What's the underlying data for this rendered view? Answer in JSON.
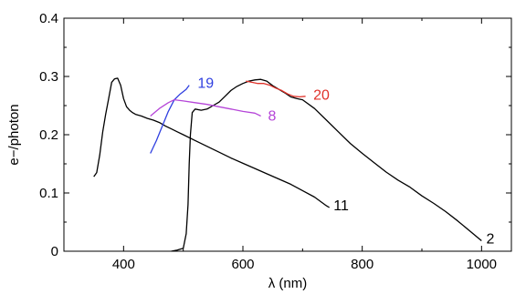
{
  "chart_data": {
    "type": "line",
    "title": "",
    "xlabel": "λ (nm)",
    "ylabel": "e−/photon",
    "xlim": [
      300,
      1050
    ],
    "ylim": [
      0,
      0.4
    ],
    "xticks": [
      400,
      600,
      800,
      1000
    ],
    "yticks": [
      0,
      0.1,
      0.2,
      0.3,
      0.4
    ],
    "ytick_labels": [
      "0",
      "0.1",
      "0.2",
      "0.3",
      "0.4"
    ],
    "grid": false,
    "legend": "none",
    "series": [
      {
        "name": "11",
        "color": "#000000",
        "label_pos": [
          752,
          0.078
        ],
        "x": [
          350,
          355,
          360,
          365,
          370,
          375,
          380,
          385,
          390,
          395,
          400,
          405,
          410,
          415,
          420,
          430,
          440,
          450,
          460,
          470,
          480,
          490,
          500,
          520,
          540,
          560,
          580,
          600,
          620,
          640,
          660,
          680,
          700,
          720,
          740,
          745
        ],
        "y": [
          0.128,
          0.135,
          0.165,
          0.205,
          0.235,
          0.262,
          0.29,
          0.296,
          0.297,
          0.285,
          0.262,
          0.248,
          0.242,
          0.238,
          0.235,
          0.232,
          0.228,
          0.225,
          0.221,
          0.215,
          0.21,
          0.205,
          0.2,
          0.19,
          0.18,
          0.17,
          0.16,
          0.151,
          0.142,
          0.133,
          0.124,
          0.115,
          0.104,
          0.093,
          0.078,
          0.075
        ]
      },
      {
        "name": "2",
        "color": "#000000",
        "label_pos": [
          1008,
          0.021
        ],
        "x": [
          480,
          490,
          500,
          505,
          508,
          510,
          512,
          515,
          520,
          530,
          540,
          550,
          560,
          570,
          580,
          590,
          600,
          610,
          620,
          630,
          640,
          650,
          660,
          670,
          680,
          690,
          700,
          720,
          740,
          760,
          780,
          800,
          820,
          840,
          860,
          880,
          900,
          920,
          940,
          960,
          980,
          1000
        ],
        "y": [
          0,
          0.002,
          0.005,
          0.03,
          0.08,
          0.15,
          0.2,
          0.238,
          0.244,
          0.242,
          0.244,
          0.25,
          0.256,
          0.266,
          0.276,
          0.283,
          0.288,
          0.292,
          0.294,
          0.295,
          0.292,
          0.284,
          0.278,
          0.272,
          0.265,
          0.262,
          0.26,
          0.245,
          0.225,
          0.205,
          0.185,
          0.168,
          0.152,
          0.136,
          0.122,
          0.11,
          0.095,
          0.082,
          0.068,
          0.052,
          0.035,
          0.018
        ]
      },
      {
        "name": "19",
        "color": "#2f3fe0",
        "label_pos": [
          524,
          0.288
        ],
        "x": [
          445,
          455,
          465,
          475,
          485,
          495,
          505,
          510
        ],
        "y": [
          0.168,
          0.19,
          0.215,
          0.24,
          0.26,
          0.27,
          0.278,
          0.285
        ]
      },
      {
        "name": "8",
        "color": "#b545d8",
        "label_pos": [
          642,
          0.232
        ],
        "x": [
          445,
          460,
          475,
          485,
          500,
          520,
          540,
          560,
          580,
          600,
          620,
          630
        ],
        "y": [
          0.232,
          0.245,
          0.255,
          0.26,
          0.258,
          0.255,
          0.252,
          0.248,
          0.244,
          0.24,
          0.237,
          0.232
        ]
      },
      {
        "name": "20",
        "color": "#e0322a",
        "label_pos": [
          718,
          0.268
        ],
        "x": [
          605,
          615,
          625,
          635,
          645,
          655,
          665,
          675,
          685,
          695,
          705
        ],
        "y": [
          0.292,
          0.29,
          0.288,
          0.288,
          0.285,
          0.28,
          0.276,
          0.27,
          0.266,
          0.265,
          0.266
        ]
      }
    ]
  }
}
